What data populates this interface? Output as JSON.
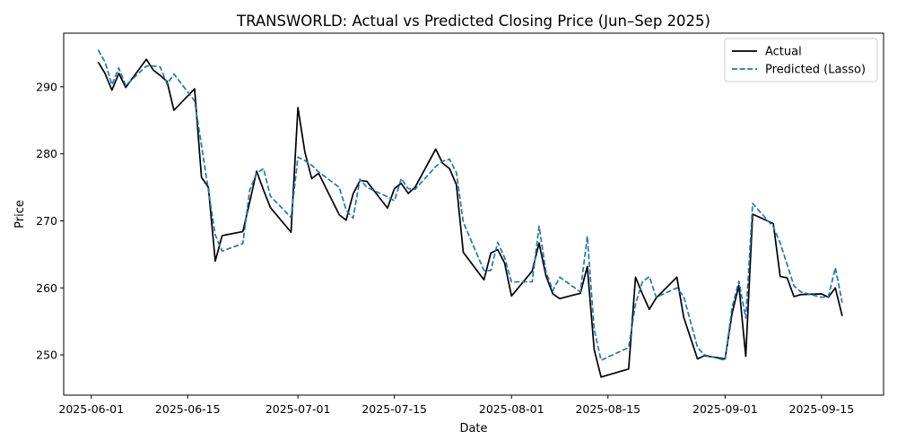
{
  "chart_data": {
    "type": "line",
    "title": "TRANSWORLD: Actual vs Predicted Closing Price (Jun–Sep 2025)",
    "xlabel": "Date",
    "ylabel": "Price",
    "xlim": [
      "2025-05-28",
      "2025-09-24"
    ],
    "ylim": [
      244,
      298
    ],
    "x_ticks": [
      "2025-06-01",
      "2025-06-15",
      "2025-07-01",
      "2025-07-15",
      "2025-08-01",
      "2025-08-15",
      "2025-09-01",
      "2025-09-15"
    ],
    "y_ticks": [
      250,
      260,
      270,
      280,
      290
    ],
    "grid": false,
    "legend_position": "top-right",
    "x": [
      "2025-06-02",
      "2025-06-03",
      "2025-06-04",
      "2025-06-05",
      "2025-06-06",
      "2025-06-09",
      "2025-06-10",
      "2025-06-11",
      "2025-06-12",
      "2025-06-13",
      "2025-06-16",
      "2025-06-17",
      "2025-06-18",
      "2025-06-19",
      "2025-06-20",
      "2025-06-23",
      "2025-06-24",
      "2025-06-25",
      "2025-06-26",
      "2025-06-27",
      "2025-06-30",
      "2025-07-01",
      "2025-07-02",
      "2025-07-03",
      "2025-07-04",
      "2025-07-07",
      "2025-07-08",
      "2025-07-09",
      "2025-07-10",
      "2025-07-11",
      "2025-07-14",
      "2025-07-15",
      "2025-07-16",
      "2025-07-17",
      "2025-07-18",
      "2025-07-21",
      "2025-07-22",
      "2025-07-23",
      "2025-07-24",
      "2025-07-25",
      "2025-07-28",
      "2025-07-29",
      "2025-07-30",
      "2025-07-31",
      "2025-08-01",
      "2025-08-04",
      "2025-08-05",
      "2025-08-06",
      "2025-08-07",
      "2025-08-08",
      "2025-08-11",
      "2025-08-12",
      "2025-08-13",
      "2025-08-14",
      "2025-08-18",
      "2025-08-19",
      "2025-08-20",
      "2025-08-21",
      "2025-08-22",
      "2025-08-25",
      "2025-08-26",
      "2025-08-28",
      "2025-08-29",
      "2025-09-01",
      "2025-09-02",
      "2025-09-03",
      "2025-09-04",
      "2025-09-05",
      "2025-09-08",
      "2025-09-09",
      "2025-09-10",
      "2025-09-11",
      "2025-09-12",
      "2025-09-15",
      "2025-09-16",
      "2025-09-17",
      "2025-09-18"
    ],
    "series": [
      {
        "name": "Actual",
        "color": "#000000",
        "style": "solid",
        "values": [
          293.7,
          292.0,
          289.5,
          292.0,
          289.9,
          294.1,
          292.5,
          291.7,
          290.8,
          286.5,
          289.7,
          276.5,
          275.0,
          264.0,
          267.8,
          268.4,
          272.8,
          277.4,
          274.6,
          272.0,
          268.3,
          286.9,
          280.3,
          276.3,
          277.1,
          270.9,
          270.1,
          274.0,
          276.0,
          275.9,
          271.9,
          274.8,
          275.6,
          274.1,
          275.0,
          280.7,
          278.6,
          277.8,
          275.4,
          265.3,
          261.2,
          265.2,
          265.7,
          263.7,
          258.8,
          262.5,
          266.7,
          261.8,
          259.1,
          258.4,
          259.2,
          263.2,
          250.8,
          246.7,
          247.9,
          261.6,
          259.1,
          256.8,
          258.5,
          261.6,
          255.6,
          249.4,
          249.9,
          249.4,
          256.1,
          260.4,
          249.8,
          271.0,
          269.6,
          261.7,
          261.5,
          258.7,
          259.0,
          259.1,
          258.6,
          260.0,
          255.8
        ]
      },
      {
        "name": "Predicted (Lasso)",
        "color": "#1f77b4",
        "style": "dashed",
        "values": [
          295.5,
          293.7,
          290.3,
          292.8,
          290.2,
          293.1,
          293.1,
          293.0,
          290.4,
          291.9,
          287.9,
          281.3,
          274.6,
          267.9,
          265.5,
          266.6,
          274.6,
          277.1,
          277.8,
          273.7,
          270.5,
          279.5,
          279.0,
          278.3,
          277.3,
          275.0,
          271.6,
          270.4,
          276.2,
          275.0,
          273.6,
          273.0,
          276.3,
          274.8,
          274.7,
          278.1,
          278.9,
          279.2,
          277.2,
          269.8,
          262.6,
          262.6,
          266.8,
          264.5,
          260.9,
          260.9,
          269.2,
          262.4,
          259.6,
          261.6,
          259.4,
          267.7,
          253.8,
          249.2,
          251.1,
          257.6,
          260.9,
          261.7,
          258.6,
          260.0,
          258.7,
          251.1,
          250.0,
          249.2,
          257.0,
          261.0,
          255.5,
          272.6,
          269.1,
          266.7,
          263.5,
          260.3,
          259.4,
          258.6,
          258.7,
          263.0,
          257.8
        ]
      }
    ]
  }
}
